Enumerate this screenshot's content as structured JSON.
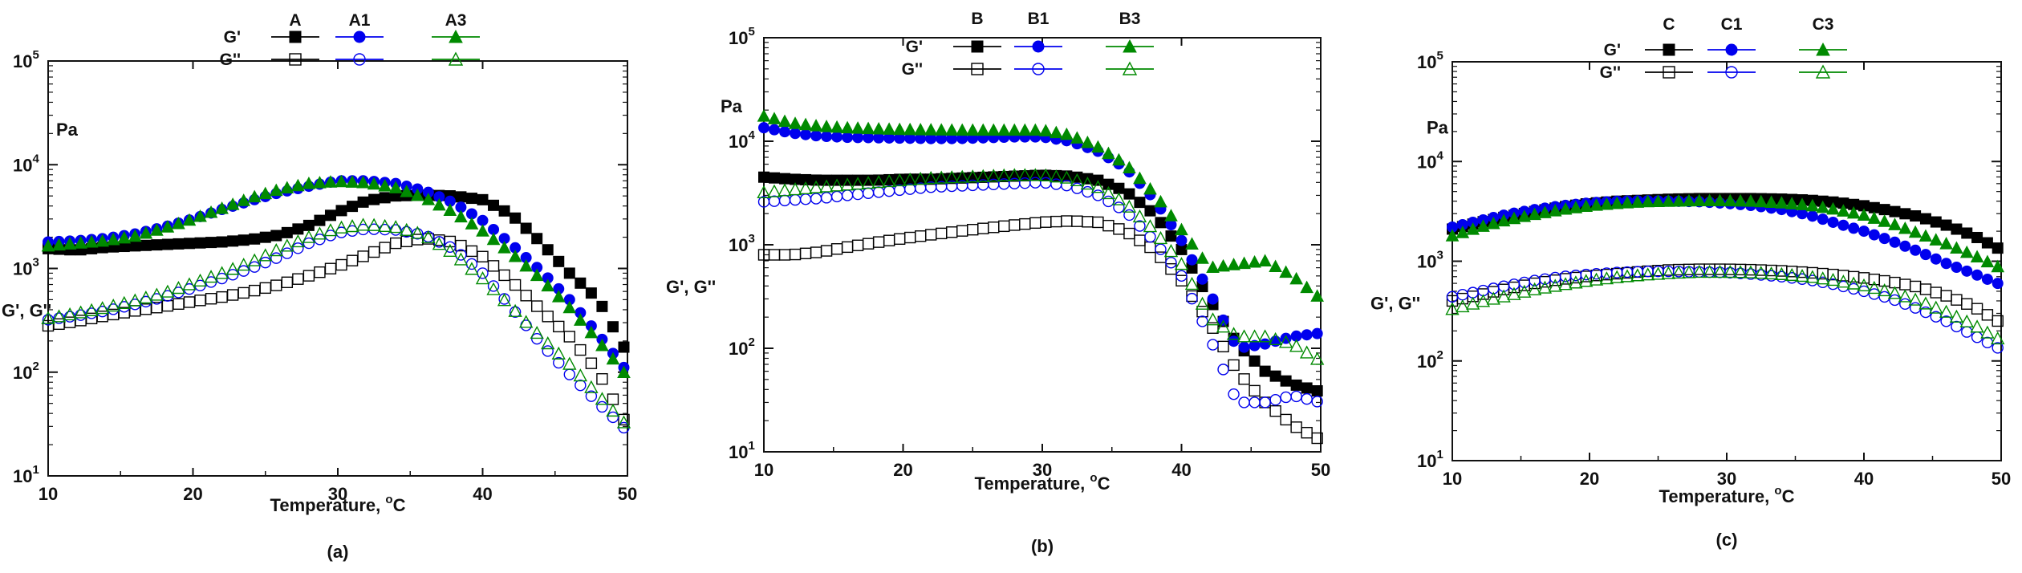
{
  "chart_data": [
    {
      "type": "scatter",
      "caption": "(a)",
      "xlabel_prefix": "Temperature, ",
      "xlabel_unit": "C",
      "degree_symbol": "o",
      "ylabel": "G', G''",
      "yunit": "Pa",
      "xlim": [
        10,
        50
      ],
      "ylim": [
        10,
        100000
      ],
      "yscale": "log",
      "xticks": [
        "10",
        "20",
        "30",
        "40",
        "50"
      ],
      "yticks": [
        {
          "base": "10",
          "exp": "1"
        },
        {
          "base": "10",
          "exp": "2"
        },
        {
          "base": "10",
          "exp": "3"
        },
        {
          "base": "10",
          "exp": "4"
        },
        {
          "base": "10",
          "exp": "5"
        }
      ],
      "legend_rows": [
        "G'",
        "G''"
      ],
      "legend_cols": [
        "A",
        "A1",
        "A3"
      ],
      "x": [
        10,
        12,
        14,
        16,
        18,
        20,
        22,
        24,
        26,
        28,
        30,
        32,
        34,
        36,
        38,
        40,
        42,
        44,
        46,
        48,
        50
      ],
      "series": [
        {
          "name": "A G'",
          "sample": "A",
          "modulus": "G'",
          "color": "#000000",
          "marker": "square",
          "filled": true,
          "values": [
            1550,
            1500,
            1600,
            1650,
            1700,
            1750,
            1800,
            1900,
            2100,
            2600,
            3500,
            4500,
            5000,
            5100,
            5000,
            4600,
            3300,
            1800,
            900,
            500,
            150
          ]
        },
        {
          "name": "A1 G'",
          "sample": "A1",
          "modulus": "G'",
          "color": "#0000ee",
          "marker": "circle",
          "filled": true,
          "values": [
            1800,
            1850,
            1950,
            2150,
            2500,
            3000,
            3700,
            4500,
            5400,
            6200,
            7000,
            7000,
            6600,
            5600,
            4300,
            2900,
            1700,
            950,
            500,
            230,
            100
          ]
        },
        {
          "name": "A3 G'",
          "sample": "A3",
          "modulus": "G'",
          "color": "#008a00",
          "marker": "triangle",
          "filled": true,
          "values": [
            1650,
            1750,
            1850,
            2050,
            2450,
            3000,
            3800,
            4800,
            5800,
            6600,
            6900,
            6700,
            6000,
            4800,
            3500,
            2300,
            1400,
            800,
            420,
            200,
            90
          ]
        },
        {
          "name": "A G''",
          "sample": "A",
          "modulus": "G''",
          "color": "#000000",
          "marker": "square",
          "filled": false,
          "values": [
            280,
            310,
            350,
            390,
            430,
            480,
            530,
            600,
            700,
            850,
            1050,
            1350,
            1750,
            1950,
            1800,
            1300,
            750,
            400,
            220,
            100,
            30
          ]
        },
        {
          "name": "A1 G''",
          "sample": "A1",
          "modulus": "G''",
          "color": "#0000ee",
          "marker": "circle",
          "filled": false,
          "values": [
            320,
            350,
            390,
            450,
            530,
            650,
            800,
            1000,
            1300,
            1750,
            2200,
            2400,
            2350,
            2100,
            1550,
            900,
            420,
            190,
            95,
            50,
            27
          ]
        },
        {
          "name": "A3 G''",
          "sample": "A3",
          "modulus": "G''",
          "color": "#008a00",
          "marker": "triangle",
          "filled": false,
          "values": [
            330,
            370,
            420,
            490,
            580,
            720,
            900,
            1150,
            1550,
            2000,
            2450,
            2650,
            2500,
            2100,
            1400,
            800,
            420,
            220,
            120,
            60,
            30
          ]
        }
      ]
    },
    {
      "type": "scatter",
      "caption": "(b)",
      "xlabel_prefix": "Temperature, ",
      "xlabel_unit": "C",
      "degree_symbol": "o",
      "ylabel": "G', G''",
      "yunit": "Pa",
      "xlim": [
        10,
        50
      ],
      "ylim": [
        10,
        100000
      ],
      "yscale": "log",
      "xticks": [
        "10",
        "20",
        "30",
        "40",
        "50"
      ],
      "yticks": [
        {
          "base": "10",
          "exp": "1"
        },
        {
          "base": "10",
          "exp": "2"
        },
        {
          "base": "10",
          "exp": "3"
        },
        {
          "base": "10",
          "exp": "4"
        },
        {
          "base": "10",
          "exp": "5"
        }
      ],
      "legend_rows": [
        "G'",
        "G''"
      ],
      "legend_cols": [
        "B",
        "B1",
        "B3"
      ],
      "x": [
        10,
        12,
        14,
        16,
        18,
        20,
        22,
        24,
        26,
        28,
        30,
        32,
        34,
        36,
        38,
        40,
        42,
        44,
        46,
        48,
        50
      ],
      "series": [
        {
          "name": "B G'",
          "sample": "B",
          "modulus": "G'",
          "color": "#000000",
          "marker": "square",
          "filled": true,
          "values": [
            4500,
            4300,
            4200,
            4200,
            4200,
            4300,
            4300,
            4400,
            4500,
            4600,
            4700,
            4600,
            4200,
            3300,
            2000,
            900,
            300,
            110,
            60,
            45,
            38
          ]
        },
        {
          "name": "B1 G'",
          "sample": "B1",
          "modulus": "G'",
          "color": "#0000ee",
          "marker": "circle",
          "filled": true,
          "values": [
            13500,
            12000,
            11200,
            10900,
            10800,
            10700,
            10600,
            10600,
            10800,
            11000,
            11000,
            10000,
            8000,
            5500,
            2800,
            1100,
            350,
            100,
            110,
            130,
            140
          ]
        },
        {
          "name": "B3 G'",
          "sample": "B3",
          "modulus": "G'",
          "color": "#008a00",
          "marker": "triangle",
          "filled": true,
          "values": [
            17500,
            15000,
            14000,
            13500,
            13200,
            13000,
            12900,
            12800,
            12800,
            12800,
            12800,
            11500,
            8800,
            6000,
            3200,
            1400,
            600,
            650,
            700,
            500,
            300
          ]
        },
        {
          "name": "B G''",
          "sample": "B",
          "modulus": "G''",
          "color": "#000000",
          "marker": "square",
          "filled": false,
          "values": [
            800,
            800,
            850,
            950,
            1050,
            1150,
            1250,
            1350,
            1450,
            1550,
            1650,
            1700,
            1650,
            1350,
            900,
            450,
            180,
            60,
            30,
            18,
            13
          ]
        },
        {
          "name": "B1 G''",
          "sample": "B1",
          "modulus": "G''",
          "color": "#0000ee",
          "marker": "circle",
          "filled": false,
          "values": [
            2600,
            2700,
            2800,
            3000,
            3200,
            3400,
            3600,
            3700,
            3800,
            3900,
            4000,
            3700,
            3000,
            2100,
            1100,
            500,
            130,
            30,
            30,
            35,
            30
          ]
        },
        {
          "name": "B3 G''",
          "sample": "B3",
          "modulus": "G''",
          "color": "#008a00",
          "marker": "triangle",
          "filled": false,
          "values": [
            3200,
            3400,
            3600,
            3800,
            4000,
            4200,
            4400,
            4500,
            4600,
            4700,
            4700,
            4400,
            3600,
            2500,
            1400,
            650,
            200,
            130,
            130,
            110,
            75
          ]
        }
      ]
    },
    {
      "type": "scatter",
      "caption": "(c)",
      "xlabel_prefix": "Temperature, ",
      "xlabel_unit": "C",
      "degree_symbol": "o",
      "ylabel": "G', G''",
      "yunit": "Pa",
      "xlim": [
        10,
        50
      ],
      "ylim": [
        10,
        100000
      ],
      "yscale": "log",
      "xticks": [
        "10",
        "20",
        "30",
        "40",
        "50"
      ],
      "yticks": [
        {
          "base": "10",
          "exp": "1"
        },
        {
          "base": "10",
          "exp": "2"
        },
        {
          "base": "10",
          "exp": "3"
        },
        {
          "base": "10",
          "exp": "4"
        },
        {
          "base": "10",
          "exp": "5"
        }
      ],
      "legend_rows": [
        "G'",
        "G''"
      ],
      "legend_cols": [
        "C",
        "C1",
        "C3"
      ],
      "x": [
        10,
        12,
        14,
        16,
        18,
        20,
        22,
        24,
        26,
        28,
        30,
        32,
        34,
        36,
        38,
        40,
        42,
        44,
        46,
        48,
        50
      ],
      "series": [
        {
          "name": "C G'",
          "sample": "C",
          "modulus": "G'",
          "color": "#000000",
          "marker": "square",
          "filled": true,
          "values": [
            2100,
            2450,
            2800,
            3150,
            3500,
            3800,
            4000,
            4100,
            4200,
            4250,
            4250,
            4250,
            4200,
            4100,
            3900,
            3600,
            3200,
            2800,
            2300,
            1800,
            1300
          ]
        },
        {
          "name": "C1 G'",
          "sample": "C1",
          "modulus": "G'",
          "color": "#0000ee",
          "marker": "circle",
          "filled": true,
          "values": [
            2200,
            2550,
            2950,
            3300,
            3600,
            3850,
            4000,
            4050,
            4000,
            3950,
            3800,
            3600,
            3300,
            2900,
            2400,
            2000,
            1600,
            1250,
            950,
            750,
            580
          ]
        },
        {
          "name": "C3 G'",
          "sample": "C3",
          "modulus": "G'",
          "color": "#008a00",
          "marker": "triangle",
          "filled": true,
          "values": [
            1800,
            2200,
            2600,
            2950,
            3300,
            3600,
            3800,
            3950,
            4000,
            4050,
            4050,
            4000,
            3850,
            3650,
            3300,
            2900,
            2400,
            1900,
            1500,
            1150,
            850
          ]
        },
        {
          "name": "C G''",
          "sample": "C",
          "modulus": "G''",
          "color": "#000000",
          "marker": "square",
          "filled": false,
          "values": [
            400,
            460,
            530,
            600,
            660,
            710,
            750,
            790,
            820,
            830,
            830,
            820,
            800,
            770,
            730,
            680,
            620,
            550,
            450,
            350,
            240
          ]
        },
        {
          "name": "C1 G''",
          "sample": "C1",
          "modulus": "G''",
          "color": "#0000ee",
          "marker": "circle",
          "filled": false,
          "values": [
            440,
            500,
            570,
            640,
            700,
            740,
            770,
            790,
            790,
            780,
            770,
            740,
            700,
            650,
            580,
            500,
            420,
            330,
            250,
            180,
            130
          ]
        },
        {
          "name": "C3 G''",
          "sample": "C3",
          "modulus": "G''",
          "color": "#008a00",
          "marker": "triangle",
          "filled": false,
          "values": [
            330,
            390,
            450,
            520,
            580,
            640,
            690,
            730,
            760,
            780,
            780,
            770,
            740,
            700,
            640,
            570,
            490,
            400,
            310,
            230,
            160
          ]
        }
      ]
    }
  ]
}
